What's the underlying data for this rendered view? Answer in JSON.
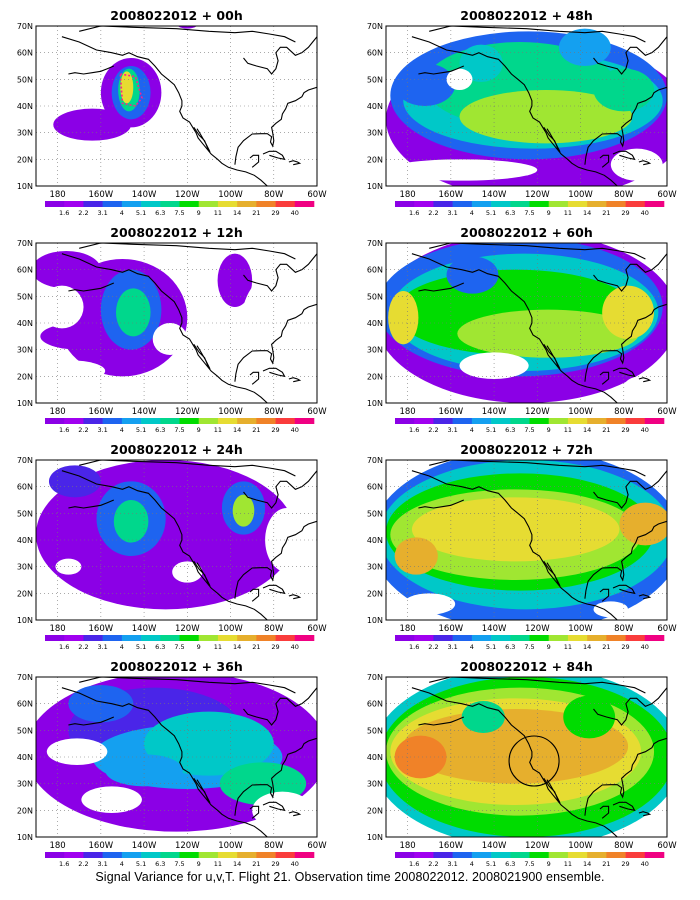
{
  "footer": {
    "caption": "Signal Variance for u,v,T. Flight 21. Observation time 2008022012. 2008021900 ensemble."
  },
  "colorbar": {
    "labels": [
      "1.6",
      "2.2",
      "3.1",
      "4",
      "5.1",
      "6.3",
      "7.5",
      "9",
      "11",
      "14",
      "21",
      "29",
      "40"
    ],
    "colors": [
      "#8b00e6",
      "#a000f0",
      "#4a25e8",
      "#1e64f0",
      "#14a0f0",
      "#00c8c8",
      "#00d78c",
      "#00dc00",
      "#a0e632",
      "#e6dc32",
      "#e6af2d",
      "#f08228",
      "#fa3c3c",
      "#f00082"
    ]
  },
  "map": {
    "x_labels": [
      "180",
      "160W",
      "140W",
      "120W",
      "100W",
      "80W",
      "60W"
    ],
    "y_labels": [
      "10N",
      "20N",
      "30N",
      "40N",
      "50N",
      "60N",
      "70N"
    ]
  },
  "chart_data": [
    {
      "type": "heatmap",
      "title": "2008022012 + 00h",
      "lead_hours": 0,
      "xlim": [
        170,
        300
      ],
      "ylim": [
        10,
        70
      ],
      "xlabel": "",
      "ylabel": "",
      "grid": true
    },
    {
      "type": "heatmap",
      "title": "2008022012 + 48h",
      "lead_hours": 48,
      "xlim": [
        170,
        300
      ],
      "ylim": [
        10,
        70
      ],
      "xlabel": "",
      "ylabel": "",
      "grid": true
    },
    {
      "type": "heatmap",
      "title": "2008022012 + 12h",
      "lead_hours": 12,
      "xlim": [
        170,
        300
      ],
      "ylim": [
        10,
        70
      ],
      "xlabel": "",
      "ylabel": "",
      "grid": true
    },
    {
      "type": "heatmap",
      "title": "2008022012 + 60h",
      "lead_hours": 60,
      "xlim": [
        170,
        300
      ],
      "ylim": [
        10,
        70
      ],
      "xlabel": "",
      "ylabel": "",
      "grid": true
    },
    {
      "type": "heatmap",
      "title": "2008022012 + 24h",
      "lead_hours": 24,
      "xlim": [
        170,
        300
      ],
      "ylim": [
        10,
        70
      ],
      "xlabel": "",
      "ylabel": "",
      "grid": true
    },
    {
      "type": "heatmap",
      "title": "2008022012 + 72h",
      "lead_hours": 72,
      "xlim": [
        170,
        300
      ],
      "ylim": [
        10,
        70
      ],
      "xlabel": "",
      "ylabel": "",
      "grid": true
    },
    {
      "type": "heatmap",
      "title": "2008022012 + 36h",
      "lead_hours": 36,
      "xlim": [
        170,
        300
      ],
      "ylim": [
        10,
        70
      ],
      "xlabel": "",
      "ylabel": "",
      "grid": true
    },
    {
      "type": "heatmap",
      "title": "2008022012 + 84h",
      "lead_hours": 84,
      "xlim": [
        170,
        300
      ],
      "ylim": [
        10,
        70
      ],
      "xlabel": "",
      "ylabel": "",
      "grid": true
    }
  ]
}
